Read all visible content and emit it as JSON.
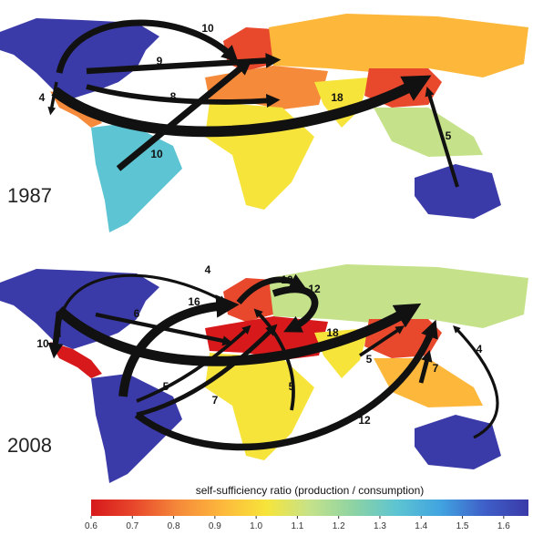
{
  "maps": [
    {
      "year": "1987",
      "flows": [
        {
          "value": 10
        },
        {
          "value": 9
        },
        {
          "value": 8
        },
        {
          "value": 18
        },
        {
          "value": 4
        },
        {
          "value": 10
        },
        {
          "value": 5
        }
      ]
    },
    {
      "year": "2008",
      "flows": [
        {
          "value": 4
        },
        {
          "value": 10
        },
        {
          "value": 10
        },
        {
          "value": 12
        },
        {
          "value": 16
        },
        {
          "value": 6
        },
        {
          "value": 18
        },
        {
          "value": 5
        },
        {
          "value": 7
        },
        {
          "value": 5
        },
        {
          "value": 5
        },
        {
          "value": 7
        },
        {
          "value": 12
        },
        {
          "value": 4
        }
      ]
    }
  ],
  "colorbar": {
    "title": "self-sufficiency ratio (production / consumption)",
    "xlim": [
      0.6,
      1.66
    ],
    "colors": [
      "#d7191c",
      "#e8482c",
      "#f58a3a",
      "#fdb83c",
      "#f7e43a",
      "#c5e28a",
      "#8dd3a3",
      "#5cc4d2",
      "#41a3e0",
      "#3f5fc8",
      "#3a3aa8"
    ],
    "ticks": [
      0.6,
      0.7,
      0.8,
      0.9,
      {
        "value": 1,
        "label": "1.0"
      },
      1.1,
      1.2,
      1.3,
      1.4,
      1.5,
      1.6
    ]
  }
}
